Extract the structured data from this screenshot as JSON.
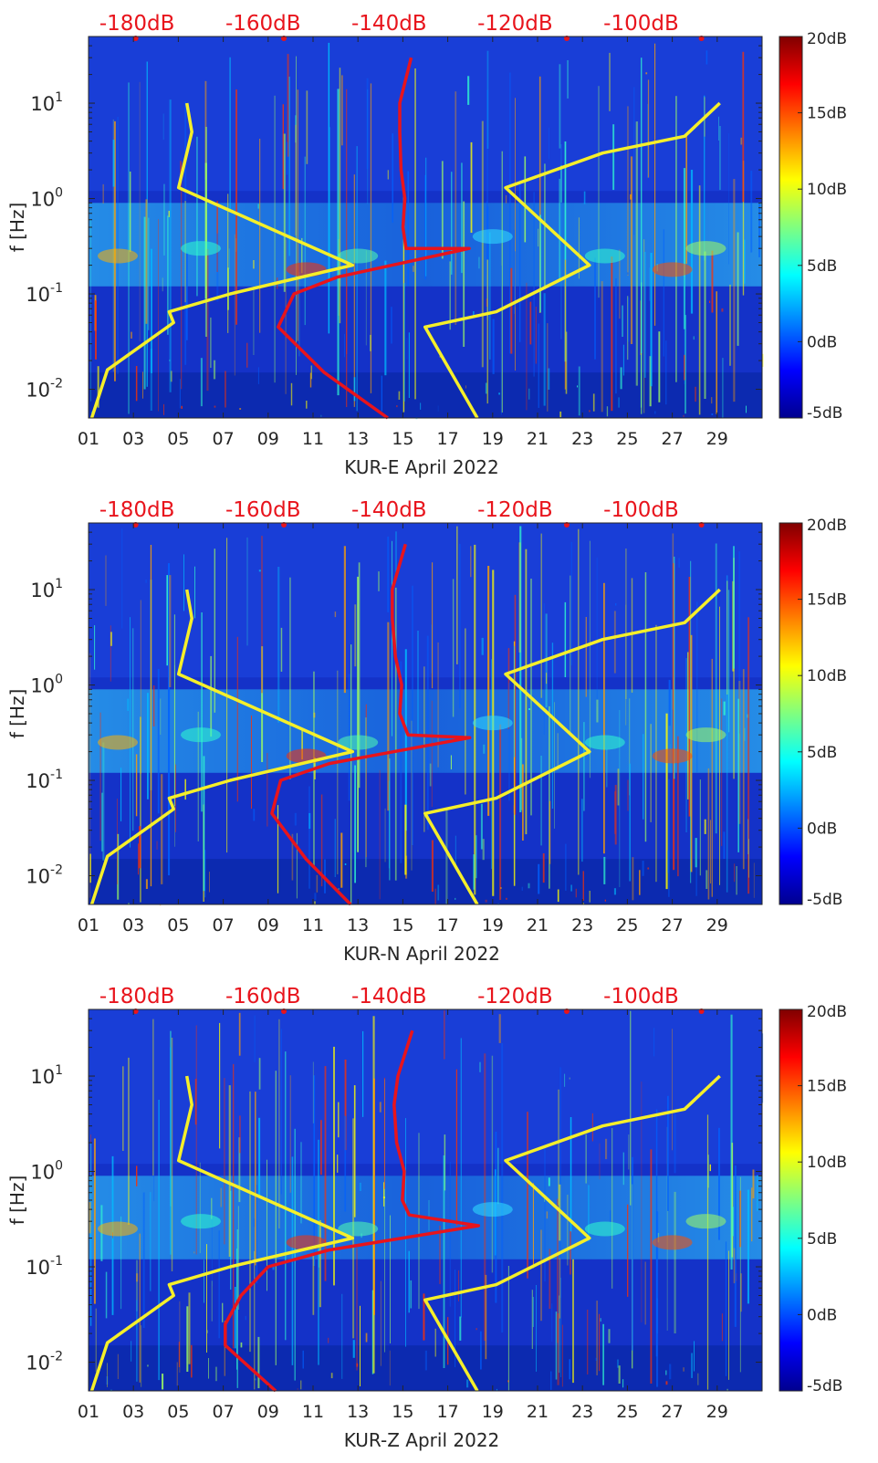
{
  "figure": {
    "colorbar": {
      "tick_labels": [
        "20dB",
        "15dB",
        "10dB",
        "5dB",
        "0dB",
        "-5dB"
      ],
      "tick_values": [
        20,
        15,
        10,
        5,
        0,
        -5
      ],
      "colormap": "jet",
      "range": [
        -5,
        20
      ]
    },
    "top_axis_labels": [
      "-180dB",
      "-160dB",
      "-140dB",
      "-120dB",
      "-100dB"
    ],
    "x_tick_labels": [
      "01",
      "03",
      "05",
      "07",
      "09",
      "11",
      "13",
      "15",
      "17",
      "19",
      "21",
      "23",
      "25",
      "27",
      "29"
    ],
    "y_tick_labels": [
      "10^1",
      "10^0",
      "10^-1",
      "10^-2"
    ],
    "y_axis_label": "f [Hz]",
    "colors": {
      "red_curve": "#e8141c",
      "yellow_curves": "#f5ef2a",
      "top_axis_text": "#e8141c",
      "background_blue": "#1432c8"
    }
  },
  "chart_data": [
    {
      "type": "heatmap",
      "title": "",
      "xlabel": "KUR-E April 2022",
      "ylabel": "f [Hz]",
      "x_range_days": [
        1,
        31
      ],
      "y_range_hz": [
        0.005,
        50
      ],
      "y_scale": "log",
      "top_axis": {
        "label_values_db": [
          -180,
          -160,
          -140,
          -120,
          -100
        ],
        "unit": "dB"
      },
      "series": [
        {
          "name": "",
          "color": "red",
          "db": [
            -136.5,
            -138.3,
            -138.3,
            -138.1,
            -137.5,
            -137.8,
            -137.3,
            -127.3,
            -148.2,
            -155.1,
            -157.6,
            -150.3,
            -140.2
          ],
          "f_hz": [
            30,
            10,
            5,
            2,
            1,
            0.5,
            0.3,
            0.3,
            0.15,
            0.1,
            0.045,
            0.015,
            0.005
          ]
        },
        {
          "name": "",
          "color": "yellow",
          "db": [
            -172.1,
            -171.3,
            -173.4,
            -145.8,
            -165.2,
            -174.9,
            -174.2,
            -184.7,
            -187.2
          ],
          "f_hz": [
            10,
            5,
            1.3,
            0.2,
            0.1,
            0.065,
            0.05,
            0.016,
            0.005
          ]
        },
        {
          "name": "",
          "color": "yellow",
          "db": [
            -87.5,
            -93.1,
            -106.1,
            -121.5,
            -108.2,
            -123.0,
            -134.3,
            -126.0
          ],
          "f_hz": [
            10,
            4.5,
            3,
            1.3,
            0.2,
            0.065,
            0.045,
            0.005
          ]
        }
      ]
    },
    {
      "type": "heatmap",
      "title": "",
      "xlabel": "KUR-N April 2022",
      "ylabel": "f [Hz]",
      "x_range_days": [
        1,
        31
      ],
      "y_range_hz": [
        0.005,
        50
      ],
      "y_scale": "log",
      "top_axis": {
        "label_values_db": [
          -180,
          -160,
          -140,
          -120,
          -100
        ],
        "unit": "dB"
      },
      "series": [
        {
          "name": "",
          "color": "red",
          "db": [
            -137.4,
            -139.5,
            -139.5,
            -139.0,
            -138.0,
            -138.3,
            -137.0,
            -127.2,
            -149.5,
            -157.2,
            -158.6,
            -153.2,
            -146.1
          ],
          "f_hz": [
            30,
            10,
            5,
            2,
            1,
            0.5,
            0.3,
            0.28,
            0.15,
            0.1,
            0.045,
            0.015,
            0.005
          ]
        },
        {
          "name": "",
          "color": "yellow",
          "db": [
            -172.1,
            -171.3,
            -173.4,
            -145.8,
            -165.2,
            -174.9,
            -174.2,
            -184.7,
            -187.2
          ],
          "f_hz": [
            10,
            5,
            1.3,
            0.2,
            0.1,
            0.065,
            0.05,
            0.016,
            0.005
          ]
        },
        {
          "name": "",
          "color": "yellow",
          "db": [
            -87.5,
            -93.1,
            -106.1,
            -121.5,
            -108.2,
            -123.0,
            -134.3,
            -126.0
          ],
          "f_hz": [
            10,
            4.5,
            3,
            1.3,
            0.2,
            0.065,
            0.045,
            0.005
          ]
        }
      ]
    },
    {
      "type": "heatmap",
      "title": "",
      "xlabel": "KUR-Z April 2022",
      "ylabel": "f [Hz]",
      "x_range_days": [
        1,
        31
      ],
      "y_range_hz": [
        0.005,
        50
      ],
      "y_scale": "log",
      "top_axis": {
        "label_values_db": [
          -180,
          -160,
          -140,
          -120,
          -100
        ],
        "unit": "dB"
      },
      "series": [
        {
          "name": "",
          "color": "red",
          "db": [
            -136.3,
            -138.6,
            -139.2,
            -138.8,
            -137.6,
            -137.9,
            -136.8,
            -125.8,
            -149.5,
            -159.2,
            -163.5,
            -166.0,
            -166.0,
            -158.0
          ],
          "f_hz": [
            30,
            10,
            5,
            2,
            1,
            0.5,
            0.35,
            0.27,
            0.15,
            0.1,
            0.05,
            0.025,
            0.015,
            0.005
          ]
        },
        {
          "name": "",
          "color": "yellow",
          "db": [
            -172.1,
            -171.3,
            -173.4,
            -145.8,
            -165.2,
            -174.9,
            -174.2,
            -184.7,
            -187.2
          ],
          "f_hz": [
            10,
            5,
            1.3,
            0.2,
            0.1,
            0.065,
            0.05,
            0.016,
            0.005
          ]
        },
        {
          "name": "",
          "color": "yellow",
          "db": [
            -87.5,
            -93.1,
            -106.1,
            -121.5,
            -108.2,
            -123.0,
            -134.3,
            -126.0
          ],
          "f_hz": [
            10,
            4.5,
            3,
            1.3,
            0.2,
            0.065,
            0.045,
            0.005
          ]
        }
      ]
    }
  ]
}
